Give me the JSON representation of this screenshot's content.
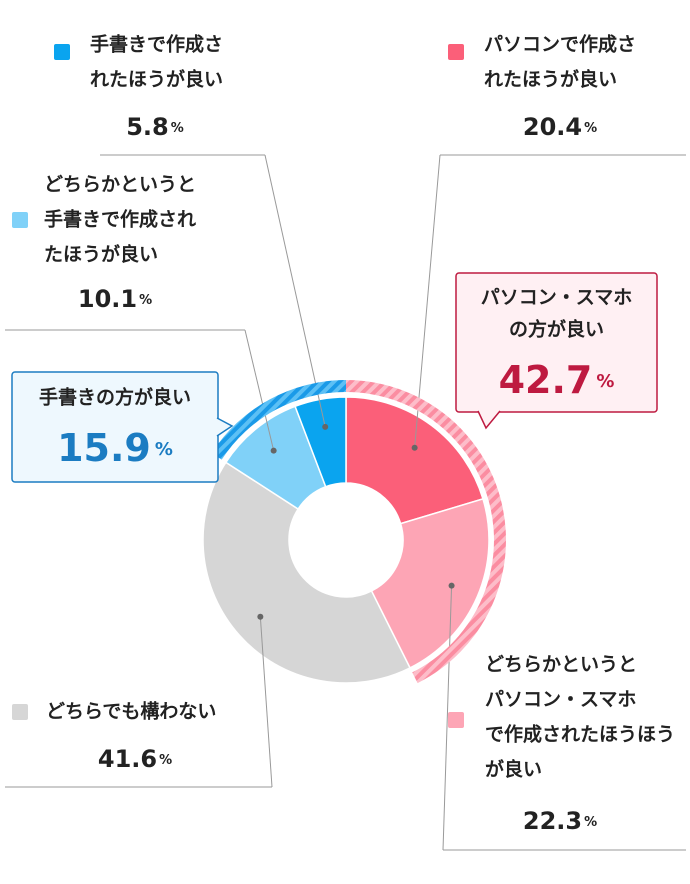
{
  "chart_data": {
    "type": "donut",
    "categories": [
      [
        "パソコンで作成さ",
        "れたほうが良い"
      ],
      [
        "どちらかというと",
        "パソコン・スマホ",
        "で作成されたほうほう",
        "が良い"
      ],
      [
        "どちらでも構わない"
      ],
      [
        "どちらかというと",
        "手書きで作成され",
        "たほうが良い"
      ],
      [
        "手書きで作成さ",
        "れたほうが良い"
      ]
    ],
    "values": [
      20.4,
      22.3,
      41.6,
      10.1,
      5.8
    ],
    "colors": [
      "#fb5f79",
      "#fda5b5",
      "#d6d6d6",
      "#80d1f8",
      "#0aa4ef"
    ],
    "unit": "%",
    "groups": [
      {
        "label": [
          "パソコン・スマホ",
          "の方が良い"
        ],
        "value": 42.7,
        "color": "#fb8da1",
        "text_color": "#be1a40"
      },
      {
        "label": [
          "手書きの方が良い"
        ],
        "value": 15.9,
        "color": "#2aa6ee",
        "text_color": "#1b7cc2"
      }
    ]
  }
}
